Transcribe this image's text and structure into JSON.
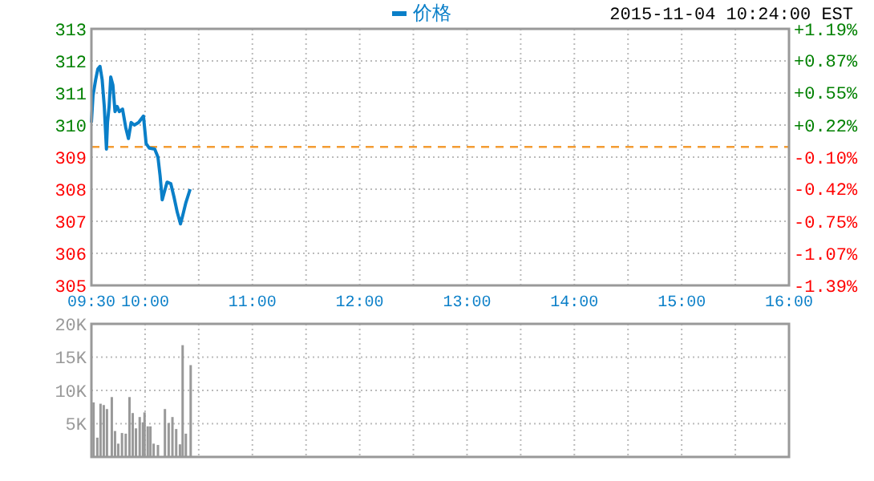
{
  "chart_data": [
    {
      "type": "line",
      "annotations": [
        "2015-11-04 10:24:00 EST"
      ],
      "xlim": [
        9.5,
        16
      ],
      "xticks": [
        {
          "value": 9.5,
          "label": "09:30"
        },
        {
          "value": 10,
          "label": "10:00"
        },
        {
          "value": 10.5,
          "label": null
        },
        {
          "value": 11,
          "label": "11:00"
        },
        {
          "value": 11.5,
          "label": null
        },
        {
          "value": 12,
          "label": "12:00"
        },
        {
          "value": 12.5,
          "label": null
        },
        {
          "value": 13,
          "label": "13:00"
        },
        {
          "value": 13.5,
          "label": null
        },
        {
          "value": 14,
          "label": "14:00"
        },
        {
          "value": 14.5,
          "label": null
        },
        {
          "value": 15,
          "label": "15:00"
        },
        {
          "value": 15.5,
          "label": null
        },
        {
          "value": 16,
          "label": "16:00"
        }
      ],
      "ylim": [
        305,
        313
      ],
      "yticks": [
        305,
        306,
        307,
        308,
        309,
        310,
        311,
        312,
        313
      ],
      "y2lim": [
        -1.39,
        1.19
      ],
      "y2ticks": [
        {
          "value": 1.19,
          "label": "+1.19%"
        },
        {
          "value": 0.87,
          "label": "+0.87%"
        },
        {
          "value": 0.55,
          "label": "+0.55%"
        },
        {
          "value": 0.22,
          "label": "+0.22%"
        },
        {
          "value": -0.1,
          "label": "-0.10%"
        },
        {
          "value": -0.42,
          "label": "-0.42%"
        },
        {
          "value": -0.75,
          "label": "-0.75%"
        },
        {
          "value": -1.07,
          "label": "-1.07%"
        },
        {
          "value": -1.39,
          "label": "-1.39%"
        }
      ],
      "grid": true,
      "legend": "top",
      "marker": "none",
      "line_style": "solid",
      "ref_lines": [
        {
          "axis": "y",
          "value": 309.32,
          "color": "#f39c33",
          "line_style": "dashed"
        }
      ],
      "series": [
        {
          "name": "价格",
          "color": "#0a7fc8",
          "x": [
            9.5,
            9.515,
            9.54,
            9.56,
            9.58,
            9.6,
            9.62,
            9.64,
            9.65,
            9.665,
            9.68,
            9.7,
            9.72,
            9.74,
            9.76,
            9.79,
            9.82,
            9.845,
            9.87,
            9.9,
            9.94,
            9.985,
            10.01,
            10.04,
            10.09,
            10.12,
            10.14,
            10.16,
            10.18,
            10.205,
            10.24,
            10.27,
            10.3,
            10.33,
            10.35,
            10.38,
            10.42
          ],
          "values": [
            310.08,
            310.92,
            311.42,
            311.75,
            311.83,
            311.42,
            310.58,
            309.25,
            310.08,
            310.58,
            311.5,
            311.25,
            310.42,
            310.58,
            310.42,
            310.5,
            309.92,
            309.58,
            310.08,
            310.0,
            310.08,
            310.28,
            309.42,
            309.28,
            309.25,
            309.0,
            308.42,
            307.67,
            307.92,
            308.22,
            308.17,
            307.75,
            307.28,
            306.92,
            307.17,
            307.58,
            308.0
          ]
        }
      ]
    },
    {
      "type": "bar",
      "xlim": [
        9.5,
        16
      ],
      "xticks": [
        9.5,
        10,
        10.5,
        11,
        11.5,
        12,
        12.5,
        13,
        13.5,
        14,
        14.5,
        15,
        15.5,
        16
      ],
      "tick_labels": "y",
      "ylim": [
        0,
        20000
      ],
      "yticks": [
        {
          "value": 5000,
          "label": "5K"
        },
        {
          "value": 10000,
          "label": "10K"
        },
        {
          "value": 15000,
          "label": "15K"
        },
        {
          "value": 20000,
          "label": "20K"
        }
      ],
      "grid": true,
      "series": [
        {
          "color": "#999999",
          "x": [
            9.52,
            9.555,
            9.585,
            9.615,
            9.645,
            9.69,
            9.72,
            9.75,
            9.785,
            9.82,
            9.855,
            9.885,
            9.915,
            9.95,
            9.98,
            9.995,
            10.025,
            10.05,
            10.08,
            10.12,
            10.185,
            10.22,
            10.255,
            10.29,
            10.325,
            10.35,
            10.38,
            10.425
          ],
          "values": [
            8200,
            2900,
            8000,
            7800,
            7200,
            9000,
            3900,
            2000,
            3600,
            3500,
            9000,
            6600,
            4300,
            6000,
            5200,
            6700,
            4600,
            4600,
            2000,
            1800,
            7200,
            5100,
            6000,
            4200,
            1900,
            16800,
            3500,
            13800
          ]
        }
      ]
    }
  ]
}
